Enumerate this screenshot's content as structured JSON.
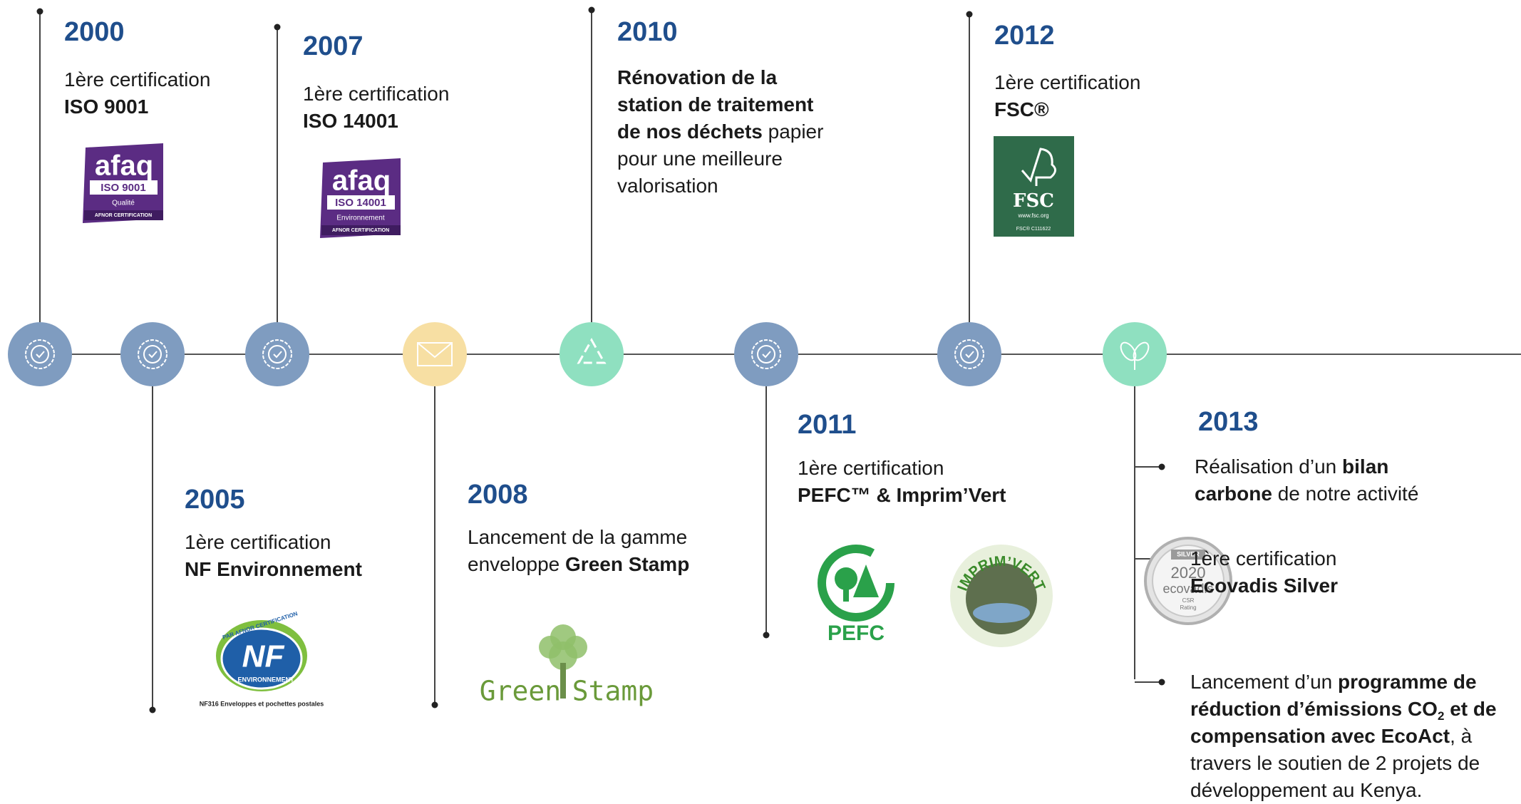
{
  "events": [
    {
      "year": "2000",
      "color": "#7f9cc0",
      "lines": [
        [
          "1ère certification"
        ],
        [
          {
            "text": "ISO 9001",
            "bold": true
          }
        ]
      ],
      "logos": [
        [
          "afaq",
          "ISO 9001",
          "Qualité",
          "AFNOR CERTIFICATION"
        ]
      ]
    },
    {
      "year": "2005",
      "color": "#7f9cc0",
      "lines": [
        [
          "1ère certification"
        ],
        [
          {
            "text": "NF Environnement",
            "bold": true
          }
        ]
      ],
      "logos": [
        [
          "PAR AFNOR CERTIFICATION",
          "NF",
          "ENVIRONNEMENT",
          "NF316 Enveloppes et pochettes postales"
        ]
      ]
    },
    {
      "year": "2007",
      "color": "#7f9cc0",
      "lines": [
        [
          "1ère certification"
        ],
        [
          {
            "text": "ISO 14001",
            "bold": true
          }
        ]
      ],
      "logos": [
        [
          "afaq",
          "ISO 14001",
          "Environnement",
          "AFNOR CERTIFICATION"
        ]
      ]
    },
    {
      "year": "2008",
      "color": "#f7dfa3",
      "lines": [
        [
          "Lancement de la gamme"
        ],
        [
          "enveloppe ",
          {
            "text": "Green Stamp",
            "bold": true
          }
        ]
      ],
      "logos": [
        [
          "Green",
          "Stamp"
        ]
      ]
    },
    {
      "year": "2010",
      "color": "#8fe0c0",
      "lines": [
        [
          {
            "text": "Rénovation de la",
            "bold": true
          }
        ],
        [
          {
            "text": "station de traitement",
            "bold": true
          }
        ],
        [
          {
            "text": "de nos déchets",
            "bold": true
          },
          " papier"
        ],
        [
          "pour une meilleure"
        ],
        [
          "valorisation"
        ]
      ],
      "logos": []
    },
    {
      "year": "2011",
      "color": "#7f9cc0",
      "lines": [
        [
          "1ère certification"
        ],
        [
          {
            "text": "PEFC™ & Imprim’Vert",
            "bold": true
          }
        ]
      ],
      "logos": [
        [
          "PEFC"
        ],
        [
          "IMPRIM’VERT"
        ]
      ]
    },
    {
      "year": "2012",
      "color": "#7f9cc0",
      "lines": [
        [
          "1ère certification"
        ],
        [
          {
            "text": "FSC®",
            "bold": true
          }
        ]
      ],
      "logos": [
        [
          "FSC",
          "www.fsc.org",
          "FSC® C111622"
        ]
      ]
    },
    {
      "year": "2013",
      "color": "#8fe0c0",
      "items": [
        {
          "lines": [
            [
              "Réalisation d’un ",
              {
                "text": "bilan",
                "bold": true
              }
            ],
            [
              {
                "text": "carbone",
                "bold": true
              },
              " de notre activité"
            ]
          ],
          "logos": []
        },
        {
          "lines": [
            [
              "1ère certification"
            ],
            [
              {
                "text": "Ecovadis Silver",
                "bold": true
              }
            ]
          ],
          "logos": [
            [
              "SILVER",
              "2020",
              "ecovadis",
              "CSR",
              "Rating"
            ]
          ]
        },
        {
          "lines": [
            [
              "Lancement d’un ",
              {
                "text": "programme de",
                "bold": true
              }
            ],
            [
              {
                "text": "réduction d’émissions CO",
                "bold": true
              },
              {
                "text": "2",
                "bold": true,
                "sub": true
              },
              {
                "text": " et de",
                "bold": true
              }
            ],
            [
              {
                "text": "compensation avec EcoAct",
                "bold": true
              },
              ", à"
            ],
            [
              "travers le soutien de 2 projets de"
            ],
            [
              "développement au Kenya."
            ]
          ],
          "logos": []
        }
      ]
    }
  ]
}
